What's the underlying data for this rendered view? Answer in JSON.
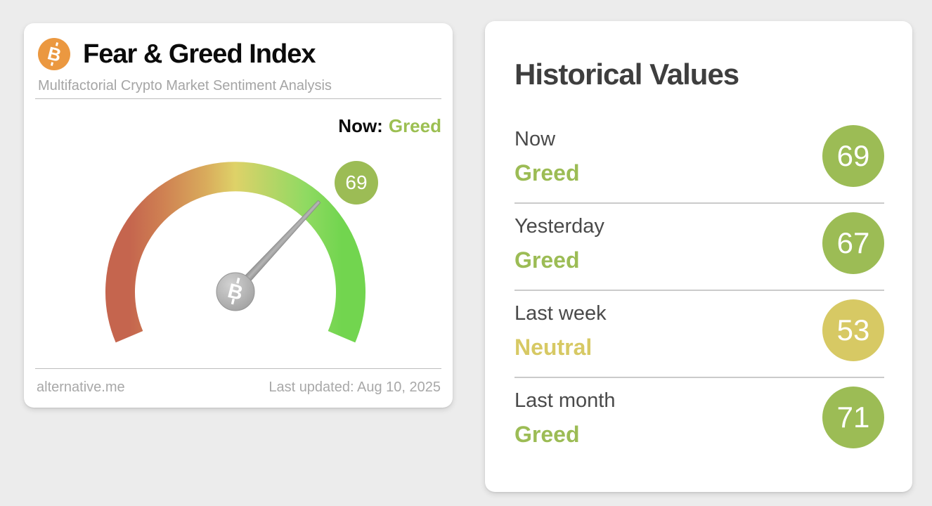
{
  "gauge_card": {
    "title": "Fear & Greed Index",
    "subtitle": "Multifactorial Crypto Market Sentiment Analysis",
    "now_label": "Now:",
    "now_classification": "Greed",
    "source": "alternative.me",
    "last_updated": "Last updated: Aug 10, 2025",
    "bitcoin_symbol": "B"
  },
  "history_card": {
    "title": "Historical Values",
    "rows": [
      {
        "label": "Now",
        "classification": "Greed",
        "value": 69,
        "color": "#9cbc55"
      },
      {
        "label": "Yesterday",
        "classification": "Greed",
        "value": 67,
        "color": "#9cbc55"
      },
      {
        "label": "Last week",
        "classification": "Neutral",
        "value": 53,
        "color": "#d7c964"
      },
      {
        "label": "Last month",
        "classification": "Greed",
        "value": 71,
        "color": "#9cbc55"
      }
    ]
  },
  "chart_data": {
    "type": "gauge",
    "title": "Fear & Greed Index",
    "value": 69,
    "min": 0,
    "max": 100,
    "classification": "Greed",
    "classification_color": "#9cbf52",
    "scale_colors": [
      "#c5654e",
      "#cf8152",
      "#d9ab5c",
      "#ded268",
      "#bed467",
      "#90da62",
      "#72d54f"
    ],
    "historical": [
      {
        "period": "Now",
        "classification": "Greed",
        "value": 69
      },
      {
        "period": "Yesterday",
        "classification": "Greed",
        "value": 67
      },
      {
        "period": "Last week",
        "classification": "Neutral",
        "value": 53
      },
      {
        "period": "Last month",
        "classification": "Greed",
        "value": 71
      }
    ]
  },
  "colors": {
    "greed": "#9cbf52",
    "neutral": "#d8c95f",
    "bitcoin_orange": "#eb9840",
    "badge_greed": "#9cbc55",
    "badge_neutral": "#d7c964"
  }
}
